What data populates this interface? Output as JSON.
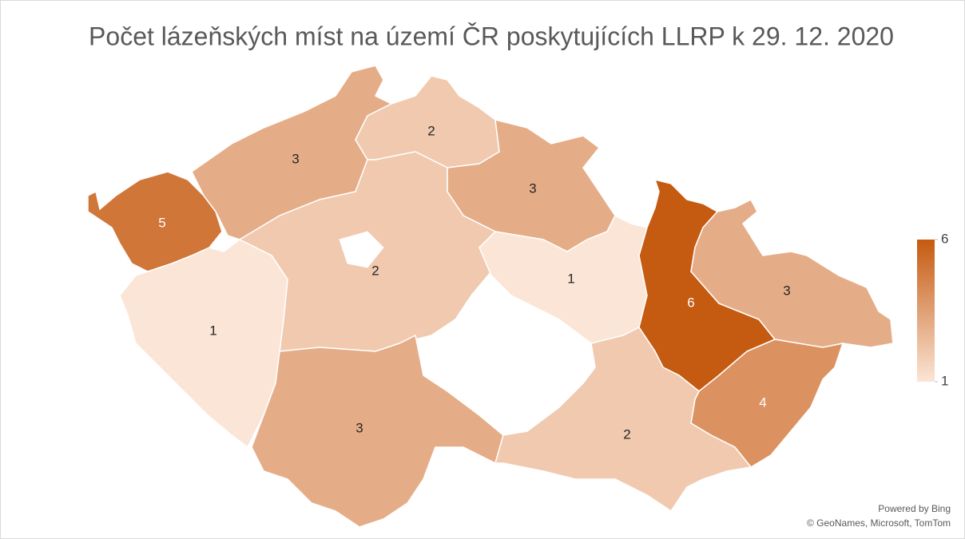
{
  "chart_data": {
    "type": "choropleth",
    "title": "Počet lázeňských míst na území ČR poskytujících LLRP k 29. 12. 2020",
    "values": [
      5,
      3,
      2,
      3,
      2,
      1,
      3,
      1,
      6,
      3,
      4,
      2
    ],
    "color_scale": {
      "range": [
        1,
        6
      ],
      "ticks": [
        1,
        6
      ],
      "colors": [
        "#fbe5d6",
        "#c55a11"
      ]
    },
    "credits": [
      "Powered by Bing",
      "© GeoNames, Microsoft, TomTom"
    ]
  }
}
